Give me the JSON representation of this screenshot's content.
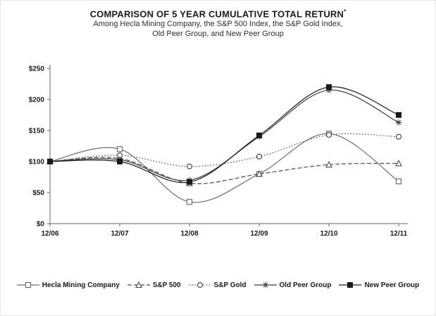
{
  "page": {
    "background": "#ffffff"
  },
  "chart_data": {
    "type": "line",
    "title": "COMPARISON OF 5 YEAR CUMULATIVE TOTAL RETURN",
    "title_superscript": "*",
    "subtitle_lines": [
      "Among Hecla Mining Company, the S&P 500 Index, the S&P Gold Index,",
      "Old Peer Group, and New Peer Group"
    ],
    "categories": [
      "12/06",
      "12/07",
      "12/08",
      "12/09",
      "12/10",
      "12/11"
    ],
    "y_ticks": [
      "$0",
      "$50",
      "$100",
      "$150",
      "$200",
      "$250"
    ],
    "ylim": [
      0,
      250
    ],
    "grid": false,
    "legend_position": "bottom",
    "axis_color": "#666666",
    "tick_label_color": "#1a1a1a",
    "series": [
      {
        "name": "Hecla Mining Company",
        "marker": "open-square",
        "dash": "solid",
        "color": "#6e6e6e",
        "values": [
          100,
          120,
          35,
          80,
          145,
          68
        ]
      },
      {
        "name": "S&P 500",
        "marker": "triangle",
        "dash": "dashed",
        "color": "#4d4d4d",
        "values": [
          100,
          105,
          65,
          80,
          95,
          97
        ]
      },
      {
        "name": "S&P Gold",
        "marker": "open-circle",
        "dash": "dotted",
        "color": "#4d4d4d",
        "values": [
          100,
          110,
          92,
          108,
          143,
          140
        ]
      },
      {
        "name": "Old Peer Group",
        "marker": "asterisk",
        "dash": "solid",
        "color": "#3d3d3d",
        "values": [
          100,
          103,
          70,
          140,
          215,
          163
        ]
      },
      {
        "name": "New Peer Group",
        "marker": "filled-square",
        "dash": "solid",
        "color": "#1a1a1a",
        "values": [
          100,
          100,
          67,
          142,
          220,
          175
        ]
      }
    ]
  }
}
